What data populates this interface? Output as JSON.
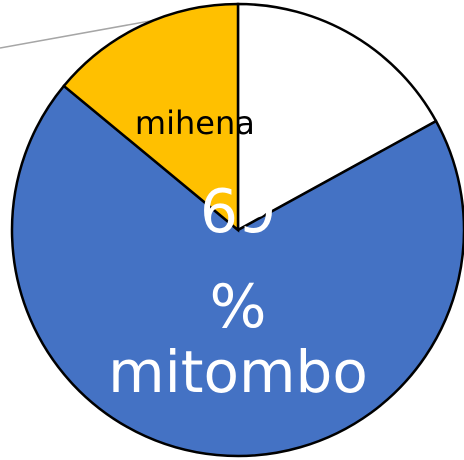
{
  "chart_data": {
    "type": "pie",
    "categories": [
      null,
      "mitombo",
      "mihena"
    ],
    "values": [
      17,
      69,
      14
    ],
    "value_labels": [
      null,
      "69%",
      null
    ],
    "colors": [
      "#ffffff",
      "#4472c4",
      "#ffc000"
    ]
  }
}
